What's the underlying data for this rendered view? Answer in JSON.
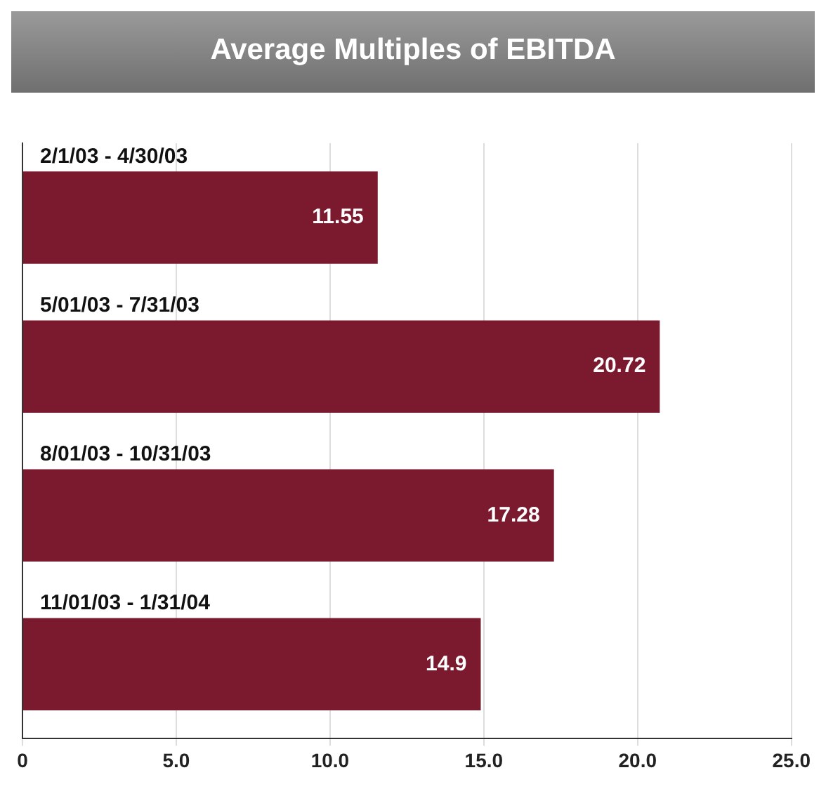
{
  "chart_data": {
    "type": "bar",
    "orientation": "horizontal",
    "title": "Average Multiples of EBITDA",
    "categories": [
      "2/1/03 - 4/30/03",
      "5/01/03 - 7/31/03",
      "8/01/03 - 10/31/03",
      "11/01/03 - 1/31/04"
    ],
    "values": [
      11.55,
      20.72,
      17.28,
      14.9
    ],
    "color": "#7b1a2f",
    "value_labels": [
      "11.55",
      "20.72",
      "17.28",
      "14.9"
    ],
    "xlim": [
      0,
      25
    ],
    "xticks": [
      0,
      {
        "value": 5,
        "label": "5.0"
      },
      {
        "value": 10,
        "label": "10.0"
      },
      {
        "value": 15,
        "label": "15.0"
      },
      {
        "value": 20,
        "label": "20.0"
      },
      {
        "value": 25,
        "label": "25.0"
      }
    ],
    "grid": "x"
  }
}
